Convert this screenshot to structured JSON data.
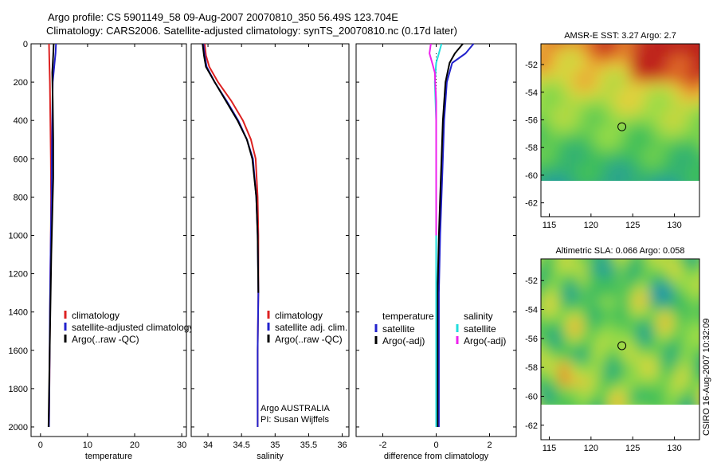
{
  "title_line1": "Argo profile: CS 5901149_58 09-Aug-2007 20070810_350 56.49S 123.704E",
  "title_line2": "Climatology: CARS2006. Satellite-adjusted climatology: synTS_20070810.nc (0.17d later)",
  "credit": "CSIRO 16-Aug-2007 10:32:09",
  "chart_data": [
    {
      "id": "temperature",
      "type": "line",
      "xlabel": "temperature",
      "xlim": [
        -2,
        31
      ],
      "ylim": [
        2050,
        0
      ],
      "xticks": [
        0,
        10,
        20,
        30
      ],
      "yticks": [
        0,
        200,
        400,
        600,
        800,
        1000,
        1200,
        1400,
        1600,
        1800,
        2000
      ],
      "legend_placement": "center-right",
      "series": [
        {
          "name": "climatology",
          "color": "#dd2222",
          "x": [
            1.8,
            1.9,
            2.0,
            2.1,
            2.2,
            2.25,
            2.2,
            2.1,
            2.0,
            1.9,
            1.8
          ],
          "y": [
            0,
            100,
            200,
            400,
            600,
            800,
            1000,
            1200,
            1500,
            1800,
            2000
          ]
        },
        {
          "name": "satellite-adjusted climatology",
          "color": "#2222cc",
          "x": [
            3.3,
            3.2,
            3.0,
            2.6,
            2.5,
            2.4,
            2.35,
            2.2,
            2.0,
            1.9,
            1.8
          ],
          "y": [
            0,
            50,
            100,
            200,
            400,
            600,
            800,
            1000,
            1400,
            1800,
            2000
          ]
        },
        {
          "name": "Argo(..raw -QC)",
          "color": "#000000",
          "x": [
            2.8,
            2.7,
            2.5,
            2.6,
            2.7,
            2.7,
            2.5,
            2.3,
            2.1,
            1.9,
            1.7
          ],
          "y": [
            0,
            60,
            150,
            300,
            500,
            700,
            900,
            1100,
            1400,
            1700,
            2000
          ]
        }
      ]
    },
    {
      "id": "salinity",
      "type": "line",
      "xlabel": "salinity",
      "xlim": [
        33.75,
        36.1
      ],
      "ylim": [
        2050,
        0
      ],
      "xticks": [
        34,
        34.5,
        35,
        35.5,
        36
      ],
      "legend_placement": "center-right",
      "annotation": [
        "Argo AUSTRALIA",
        "PI: Susan Wijffels"
      ],
      "series": [
        {
          "name": "climatology",
          "color": "#dd2222",
          "x": [
            33.95,
            33.97,
            34.02,
            34.15,
            34.35,
            34.52,
            34.64,
            34.71,
            34.74,
            34.75,
            34.75,
            34.74,
            34.74
          ],
          "y": [
            0,
            60,
            120,
            200,
            300,
            400,
            500,
            600,
            800,
            1000,
            1300,
            1600,
            2000
          ]
        },
        {
          "name": "satellite adj. clim.",
          "color": "#2222cc",
          "x": [
            33.93,
            33.95,
            33.98,
            34.1,
            34.28,
            34.45,
            34.58,
            34.67,
            34.72,
            34.74,
            34.75,
            34.74,
            34.74
          ],
          "y": [
            0,
            60,
            120,
            200,
            300,
            400,
            500,
            600,
            800,
            1000,
            1300,
            1600,
            2000
          ]
        },
        {
          "name": "Argo(..raw -QC)",
          "color": "#000000",
          "x": [
            33.92,
            33.94,
            33.97,
            34.1,
            34.27,
            34.44,
            34.58,
            34.66,
            34.72,
            34.74,
            34.75
          ],
          "y": [
            0,
            60,
            120,
            200,
            300,
            400,
            500,
            600,
            800,
            1000,
            1300
          ]
        }
      ]
    },
    {
      "id": "difference",
      "type": "line",
      "xlabel": "difference from climatology",
      "xlim": [
        -3,
        3
      ],
      "ylim": [
        2050,
        0
      ],
      "xticks": [
        -2,
        0,
        2
      ],
      "legend_placement": "center",
      "legend_headers": [
        "temperature",
        "salinity"
      ],
      "series": [
        {
          "name": "satellite",
          "group": "temperature",
          "color": "#2222cc",
          "x": [
            1.4,
            1.1,
            0.6,
            0.4,
            0.3,
            0.25,
            0.2,
            0.15,
            0.1,
            0.1,
            0.1
          ],
          "y": [
            0,
            50,
            100,
            200,
            400,
            600,
            800,
            1000,
            1300,
            1700,
            2000
          ]
        },
        {
          "name": "Argo(-adj)",
          "group": "temperature",
          "color": "#000000",
          "x": [
            1.0,
            0.7,
            0.5,
            0.35,
            0.25,
            0.2,
            0.15,
            0.1,
            0.05,
            0.05,
            0.05
          ],
          "y": [
            0,
            50,
            100,
            200,
            400,
            600,
            800,
            1000,
            1300,
            1700,
            2000
          ]
        },
        {
          "name": "satellite",
          "group": "salinity",
          "color": "#22dddd",
          "x": [
            0.2,
            0.1,
            0.0,
            -0.05,
            0.0,
            0.0,
            0.0,
            0.0,
            0.0,
            0.0,
            0.0
          ],
          "y": [
            0,
            50,
            100,
            200,
            400,
            600,
            800,
            1000,
            1300,
            1700,
            2000
          ]
        },
        {
          "name": "Argo(-adj)",
          "group": "salinity",
          "color": "#ee22ee",
          "x": [
            -0.2,
            -0.25,
            -0.15,
            -0.05,
            0.0,
            0.0,
            0.0
          ],
          "y": [
            0,
            50,
            100,
            150,
            300,
            600,
            1000
          ]
        }
      ]
    },
    {
      "id": "sst-map",
      "type": "heatmap",
      "title": "AMSR-E SST: 3.27 Argo: 2.7",
      "xlim": [
        114,
        133
      ],
      "ylim": [
        -63,
        -50.5
      ],
      "xticks": [
        115,
        120,
        125,
        130
      ],
      "yticks": [
        -52,
        -54,
        -56,
        -58,
        -60,
        -62
      ],
      "argo_position": [
        123.7,
        -56.5
      ]
    },
    {
      "id": "sla-map",
      "type": "heatmap",
      "title": "Altimetric SLA: 0.066 Argo: 0.058",
      "xlim": [
        114,
        133
      ],
      "ylim": [
        -63,
        -50.5
      ],
      "xticks": [
        115,
        120,
        125,
        130
      ],
      "yticks": [
        -52,
        -54,
        -56,
        -58,
        -60,
        -62
      ],
      "argo_position": [
        123.7,
        -56.5
      ]
    }
  ]
}
